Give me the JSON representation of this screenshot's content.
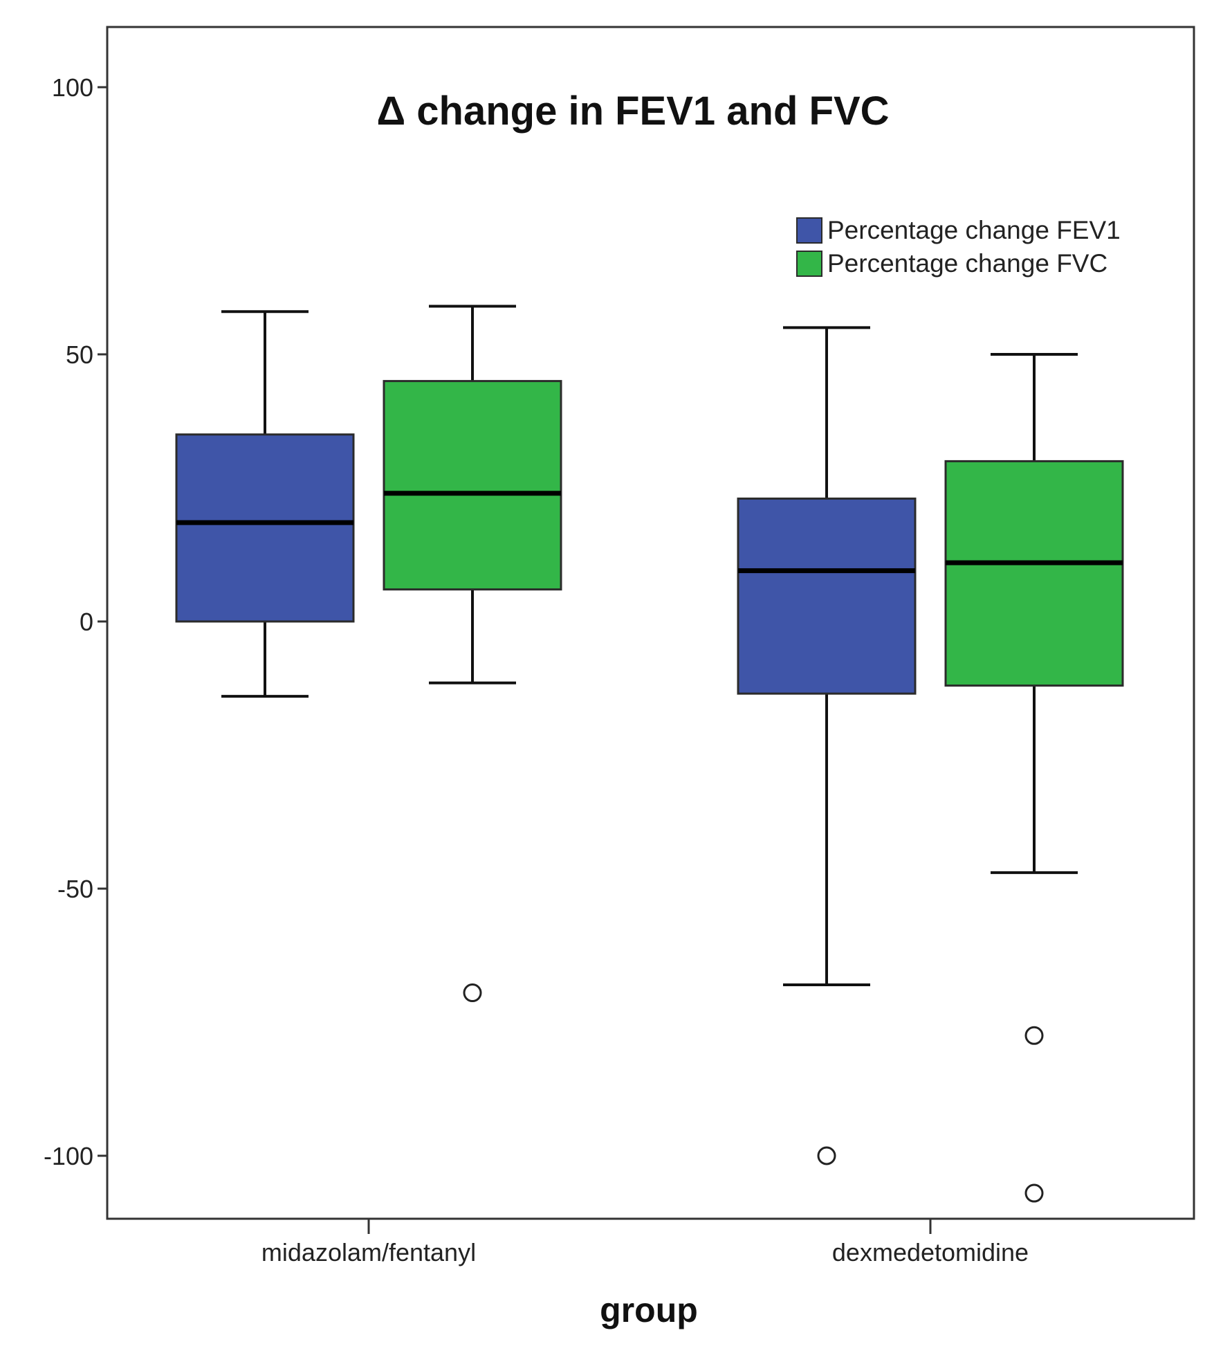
{
  "chart_data": {
    "type": "boxplot",
    "title": "Δ change in FEV1 and FVC",
    "xlabel": "group",
    "ylabel": "",
    "ylim": [
      -111.5,
      111
    ],
    "yticks": [
      -100,
      -50,
      0,
      50,
      100
    ],
    "ytick_labels": [
      "-100",
      "-50",
      "0",
      "50",
      "100"
    ],
    "categories": [
      "midazolam/fentanyl",
      "dexmedetomidine"
    ],
    "legend_position": "top-right",
    "series": [
      {
        "name": "Percentage change FEV1",
        "color": "#3f55a8",
        "boxes": [
          {
            "whisker_low": -14,
            "q1": 0,
            "median": 18.5,
            "q3": 35,
            "whisker_high": 58,
            "outliers": []
          },
          {
            "whisker_low": -68,
            "q1": -13.5,
            "median": 9.5,
            "q3": 23,
            "whisker_high": 55,
            "outliers": [
              -100
            ]
          }
        ]
      },
      {
        "name": "Percentage change FVC",
        "color": "#33b648",
        "boxes": [
          {
            "whisker_low": -11.5,
            "q1": 6,
            "median": 24,
            "q3": 45,
            "whisker_high": 59,
            "outliers": [
              -69.5
            ]
          },
          {
            "whisker_low": -47,
            "q1": -12,
            "median": 11,
            "q3": 30,
            "whisker_high": 50,
            "outliers": [
              -77.5,
              -107
            ]
          }
        ]
      }
    ]
  }
}
